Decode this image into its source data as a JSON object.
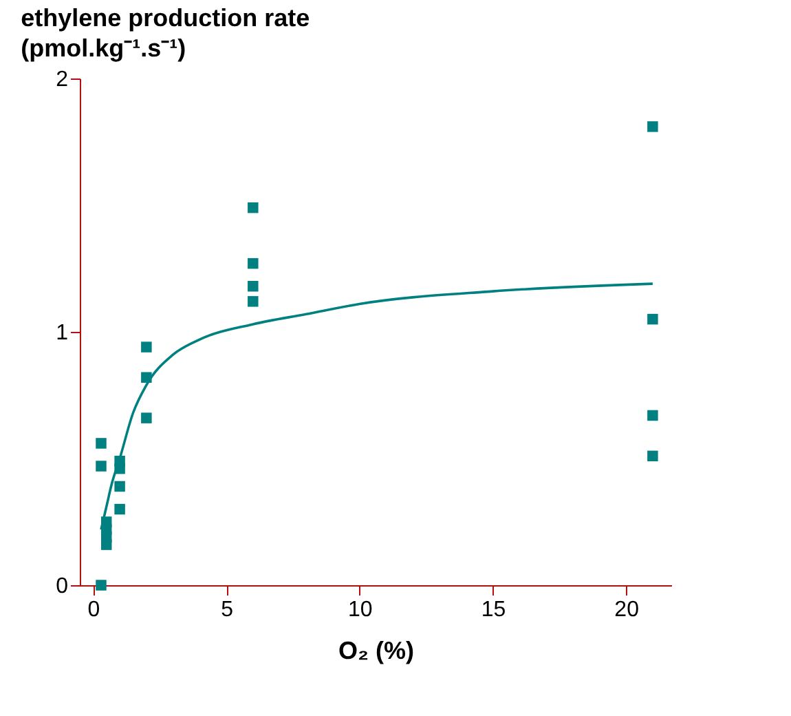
{
  "chart_data": {
    "type": "scatter",
    "ylabel": "ethylene production rate\n(pmol.kg⁻¹.s⁻¹)",
    "xlabel": "O₂ (%)",
    "xlim": [
      -0.5,
      21.7
    ],
    "xticks": [
      0,
      5,
      10,
      15,
      20
    ],
    "ylim": [
      0,
      2
    ],
    "yticks": [
      0,
      1,
      2
    ],
    "grid": false,
    "marker": "square",
    "series": [
      {
        "color": "#008080",
        "x": [
          0.3,
          0.3,
          0.3,
          0.5,
          0.5,
          0.5,
          0.5,
          1,
          1,
          1,
          1,
          2,
          2,
          2,
          6,
          6,
          6,
          6,
          21,
          21,
          21,
          21
        ],
        "values": [
          0.56,
          0.47,
          0,
          0.25,
          0.22,
          0.19,
          0.16,
          0.49,
          0.46,
          0.39,
          0.3,
          0.94,
          0.82,
          0.66,
          1.49,
          1.27,
          1.18,
          1.12,
          1.81,
          1.05,
          0.67,
          0.51
        ]
      },
      {
        "type": "line",
        "color": "#008080",
        "marker": "none",
        "x": [
          0.3,
          0.5,
          0.7,
          1,
          1.5,
          2,
          3,
          4,
          6,
          8,
          10,
          15,
          21
        ],
        "values": [
          0.22,
          0.31,
          0.4,
          0.5,
          0.68,
          0.79,
          0.91,
          0.97,
          1.03,
          1.07,
          1.11,
          1.16,
          1.19
        ]
      }
    ]
  }
}
